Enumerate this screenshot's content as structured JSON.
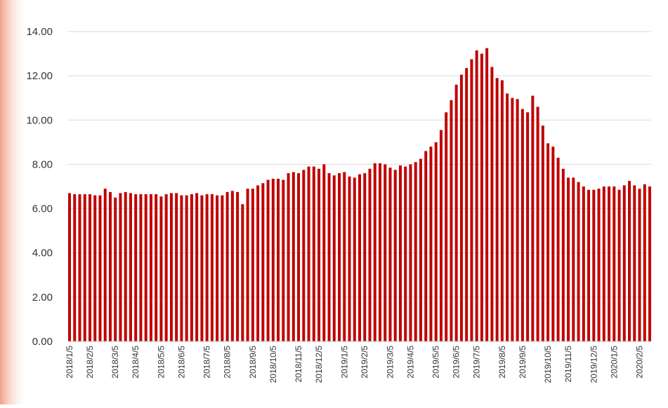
{
  "chart_data": {
    "type": "bar",
    "color": "#c00000",
    "grid": true,
    "categories": [
      "2018/1/5",
      null,
      null,
      null,
      "2018/2/5",
      null,
      null,
      null,
      null,
      "2018/3/5",
      null,
      null,
      null,
      "2018/4/5",
      null,
      null,
      null,
      null,
      "2018/5/5",
      null,
      null,
      null,
      "2018/6/5",
      null,
      null,
      null,
      null,
      "2018/7/5",
      null,
      null,
      null,
      "2018/8/5",
      null,
      null,
      null,
      null,
      "2018/9/5",
      null,
      null,
      null,
      "2018/10/5",
      null,
      null,
      null,
      null,
      "2018/11/5",
      null,
      null,
      null,
      "2018/12/5",
      null,
      null,
      null,
      null,
      "2019/1/5",
      null,
      null,
      null,
      "2019/2/5",
      null,
      null,
      null,
      null,
      "2019/3/5",
      null,
      null,
      null,
      "2019/4/5",
      null,
      null,
      null,
      null,
      "2019/5/5",
      null,
      null,
      null,
      "2019/6/5",
      null,
      null,
      null,
      "2019/7/5",
      null,
      null,
      null,
      null,
      "2019/8/5",
      null,
      null,
      null,
      "2019/9/5",
      null,
      null,
      null,
      null,
      "2019/10/5",
      null,
      null,
      null,
      "2019/11/5",
      null,
      null,
      null,
      null,
      "2019/12/5",
      null,
      null,
      null,
      "2020/1/5",
      null,
      null,
      null,
      null,
      "2020/2/5",
      null,
      null
    ],
    "values": [
      6.7,
      6.65,
      6.65,
      6.65,
      6.65,
      6.6,
      6.6,
      6.9,
      6.75,
      6.5,
      6.7,
      6.75,
      6.7,
      6.65,
      6.65,
      6.65,
      6.65,
      6.65,
      6.55,
      6.65,
      6.7,
      6.7,
      6.6,
      6.6,
      6.65,
      6.7,
      6.6,
      6.65,
      6.65,
      6.6,
      6.6,
      6.75,
      6.8,
      6.75,
      6.2,
      6.9,
      6.9,
      7.05,
      7.15,
      7.3,
      7.35,
      7.35,
      7.3,
      7.6,
      7.65,
      7.6,
      7.75,
      7.9,
      7.9,
      7.8,
      8.0,
      7.6,
      7.5,
      7.6,
      7.65,
      7.45,
      7.4,
      7.55,
      7.6,
      7.8,
      8.05,
      8.05,
      8.0,
      7.85,
      7.75,
      7.95,
      7.9,
      8.0,
      8.1,
      8.25,
      8.6,
      8.8,
      9.0,
      9.55,
      10.35,
      10.9,
      11.6,
      12.05,
      12.35,
      12.75,
      13.15,
      13.0,
      13.25,
      12.4,
      11.9,
      11.8,
      11.2,
      11.0,
      10.95,
      10.5,
      10.35,
      11.1,
      10.6,
      9.75,
      8.95,
      8.8,
      8.3,
      7.8,
      7.4,
      7.4,
      7.2,
      7.0,
      6.85,
      6.85,
      6.9,
      7.0,
      7.0,
      7.0,
      6.85,
      7.05,
      7.25,
      7.05,
      6.9,
      7.1,
      7.0
    ],
    "ylim": [
      0,
      14
    ],
    "yticks": [
      {
        "value": 0,
        "label": "0.00"
      },
      {
        "value": 2,
        "label": "2.00"
      },
      {
        "value": 4,
        "label": "4.00"
      },
      {
        "value": 6,
        "label": "6.00"
      },
      {
        "value": 8,
        "label": "8.00"
      },
      {
        "value": 10,
        "label": "10.00"
      },
      {
        "value": 12,
        "label": "12.00"
      },
      {
        "value": 14,
        "label": "14.00"
      }
    ]
  }
}
